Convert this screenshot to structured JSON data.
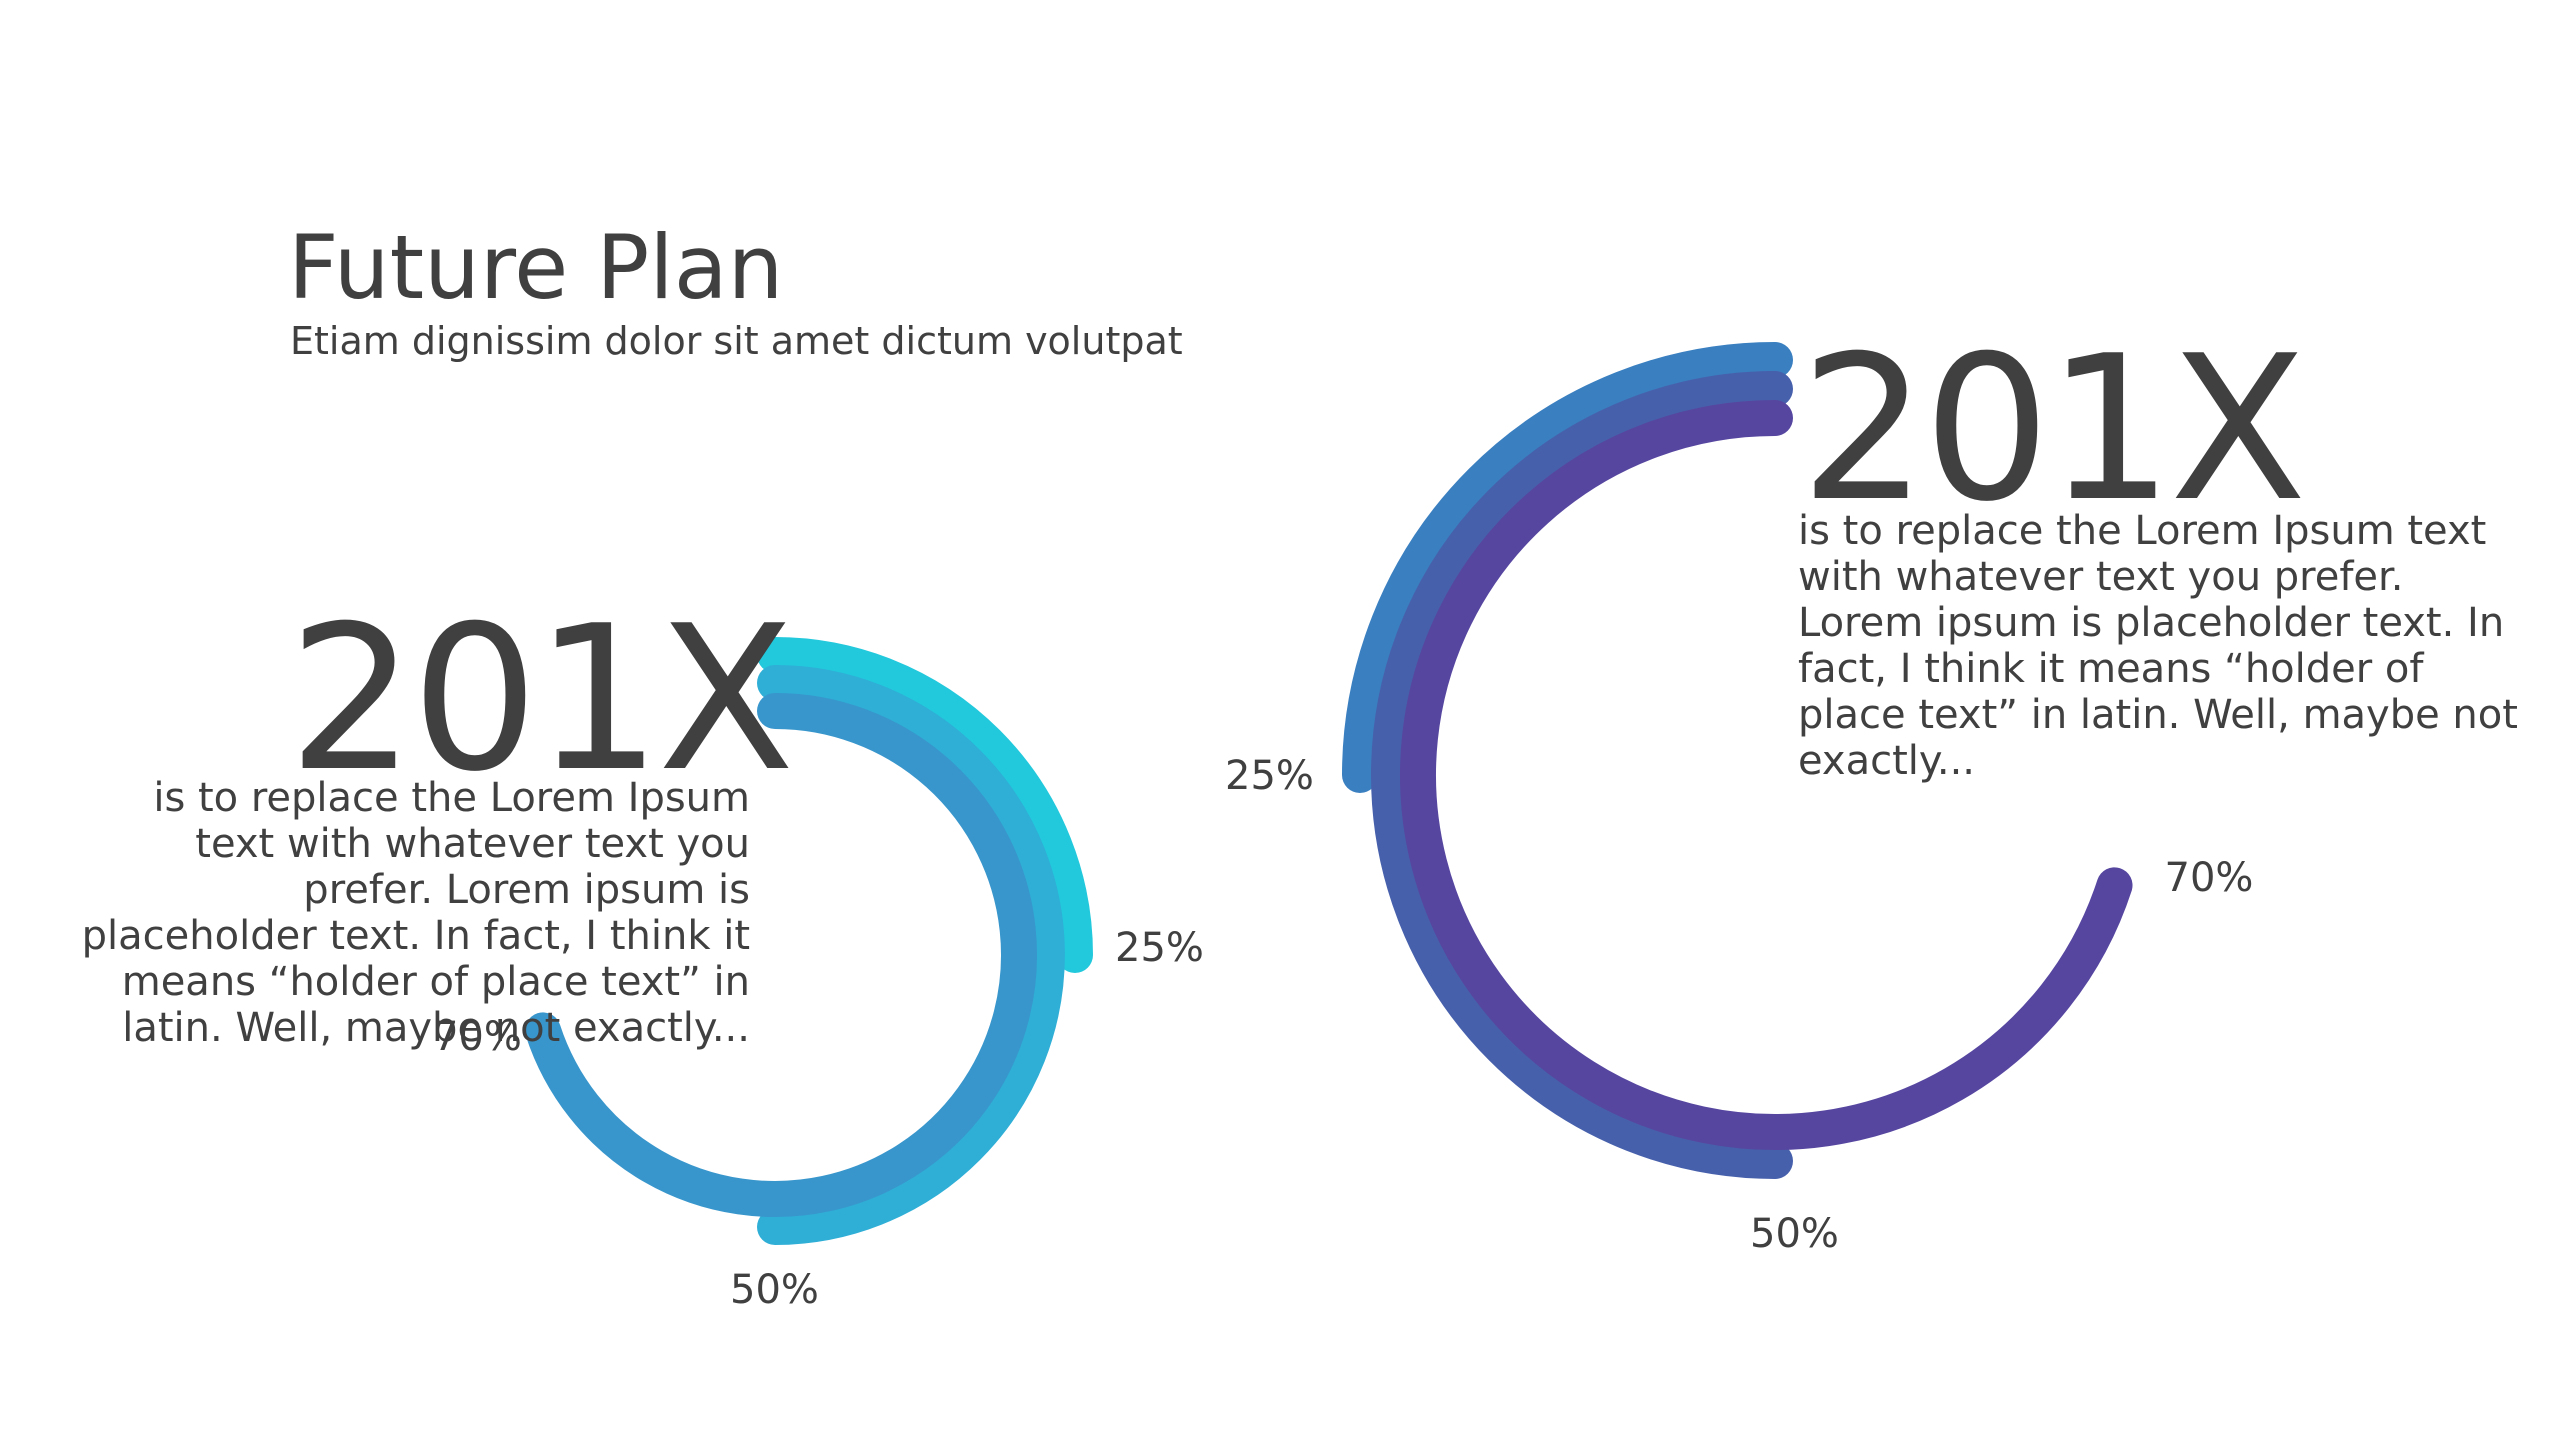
{
  "header": {
    "title": "Future Plan",
    "subtitle": "Etiam dignissim dolor sit amet dictum volutpat"
  },
  "colors": {
    "text": "#404040",
    "left_series": [
      "#22c8dc",
      "#2faed6",
      "#3896cc"
    ],
    "right_series": [
      "#3a7fc0",
      "#4760ac",
      "#5646a0"
    ]
  },
  "chart_data": [
    {
      "type": "radial-bar",
      "year_label": "201X",
      "description": "is to replace the Lorem Ipsum text with whatever text you prefer. Lorem ipsum is placeholder text. In fact, I think it means “holder of place text” in latin. Well, maybe not exactly...",
      "series": [
        {
          "label": "25%",
          "value": 25
        },
        {
          "label": "50%",
          "value": 50
        },
        {
          "label": "70%",
          "value": 70
        }
      ]
    },
    {
      "type": "radial-bar",
      "year_label": "201X",
      "description": "is to replace the Lorem Ipsum text with whatever text you prefer. Lorem ipsum is placeholder text. In fact, I think it means “holder of place text” in latin. Well, maybe not exactly...",
      "series": [
        {
          "label": "25%",
          "value": 25
        },
        {
          "label": "50%",
          "value": 50
        },
        {
          "label": "70%",
          "value": 70
        }
      ]
    }
  ]
}
